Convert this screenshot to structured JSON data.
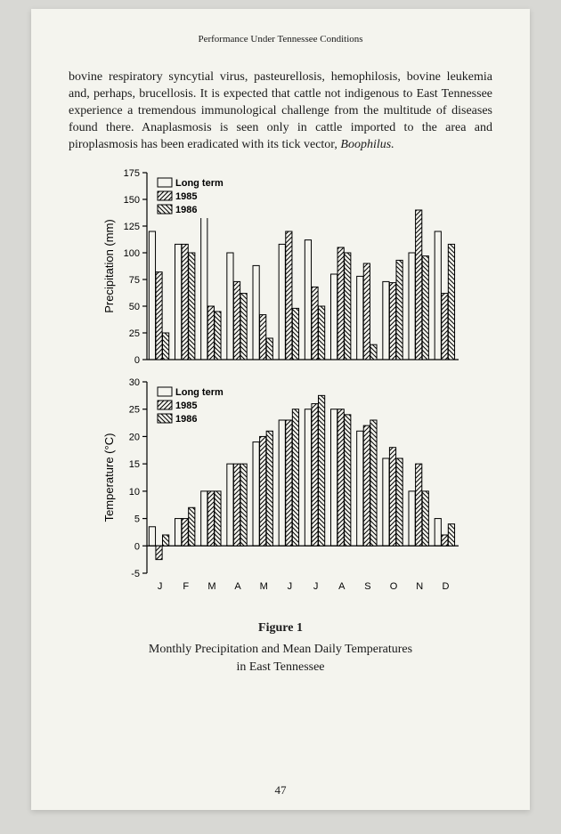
{
  "running_head": "Performance Under Tennessee Conditions",
  "paragraph": "bovine respiratory syncytial virus, pasteurellosis, hemophilosis, bovine leukemia and, perhaps, brucellosis. It is expected that cattle not indigenous to East Tennessee experience a tremendous immunological challenge from the multitude of diseases found there. Anaplasmosis is seen only in cattle imported to the area and piroplasmosis has been eradicated with its tick vector, ",
  "paragraph_italic": "Boophilus.",
  "figure_label": "Figure 1",
  "figure_title_line1": "Monthly Precipitation and Mean Daily Temperatures",
  "figure_title_line2": "in East Tennessee",
  "page_number": "47",
  "months": [
    "J",
    "F",
    "M",
    "A",
    "M",
    "J",
    "J",
    "A",
    "S",
    "O",
    "N",
    "D"
  ],
  "legend": {
    "long_term": "Long term",
    "y1985": "1985",
    "y1986": "1986",
    "fill_long_term": "none",
    "fill_1985": "hatch-right",
    "fill_1986": "hatch-left"
  },
  "precip_chart": {
    "type": "bar",
    "ylabel": "Precipitation (mm)",
    "ylim": [
      0,
      175
    ],
    "ytick_step": 25,
    "yticks": [
      0,
      25,
      50,
      75,
      100,
      125,
      150,
      175
    ],
    "bar_width": 0.26,
    "series": {
      "long_term": [
        120,
        108,
        140,
        100,
        88,
        108,
        112,
        80,
        78,
        73,
        100,
        120
      ],
      "y1985": [
        82,
        108,
        50,
        73,
        42,
        120,
        68,
        105,
        90,
        72,
        140,
        62
      ],
      "y1986": [
        25,
        100,
        45,
        62,
        20,
        48,
        50,
        100,
        14,
        93,
        97,
        108
      ]
    }
  },
  "temp_chart": {
    "type": "bar",
    "ylabel": "Temperature (°C)",
    "ylim": [
      -5,
      30
    ],
    "ytick_step": 5,
    "yticks": [
      -5,
      0,
      5,
      10,
      15,
      20,
      25,
      30
    ],
    "bar_width": 0.26,
    "series": {
      "long_term": [
        3.5,
        5,
        10,
        15,
        19,
        23,
        25,
        25,
        21,
        16,
        10,
        5
      ],
      "y1985": [
        -2.5,
        5,
        10,
        15,
        20,
        23,
        26,
        25,
        22,
        18,
        15,
        2
      ],
      "y1986": [
        2,
        7,
        10,
        15,
        21,
        25,
        27.5,
        24,
        23,
        16,
        10,
        4
      ]
    }
  },
  "colors": {
    "ink": "#000000",
    "paper": "#f4f4ee"
  }
}
